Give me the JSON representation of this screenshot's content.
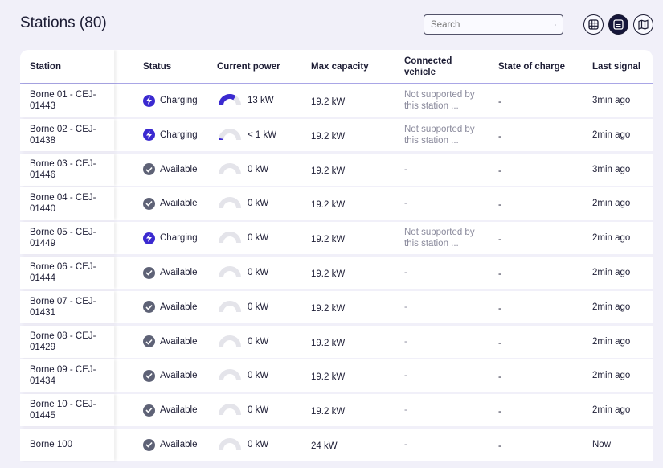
{
  "header": {
    "title": "Stations (80)",
    "search_placeholder": "Search",
    "views": [
      "grid-view",
      "list-view",
      "map-view"
    ],
    "active_view": "list-view"
  },
  "colors": {
    "accent": "#3b2ad0",
    "available": "#5e6276",
    "gauge_track": "#e4e4ea"
  },
  "table": {
    "columns": [
      "Station",
      "Status",
      "Current power",
      "Max capacity",
      "Connected vehicle",
      "State of charge",
      "Last signal"
    ],
    "rows": [
      {
        "station": "Borne 01 - CEJ-01443",
        "status": "Charging",
        "power": "13 kW",
        "power_fraction": 0.68,
        "max": "19.2 kW",
        "vehicle": "Not supported by this station ...",
        "soc": "-",
        "last": "3min ago"
      },
      {
        "station": "Borne 02 - CEJ-01438",
        "status": "Charging",
        "power": "< 1 kW",
        "power_fraction": 0.05,
        "max": "19.2 kW",
        "vehicle": "Not supported by this station ...",
        "soc": "-",
        "last": "2min ago"
      },
      {
        "station": "Borne 03 - CEJ-01446",
        "status": "Available",
        "power": "0 kW",
        "power_fraction": 0,
        "max": "19.2 kW",
        "vehicle": "-",
        "soc": "-",
        "last": "3min ago"
      },
      {
        "station": "Borne 04 - CEJ-01440",
        "status": "Available",
        "power": "0 kW",
        "power_fraction": 0,
        "max": "19.2 kW",
        "vehicle": "-",
        "soc": "-",
        "last": "2min ago"
      },
      {
        "station": "Borne 05 - CEJ-01449",
        "status": "Charging",
        "power": "0 kW",
        "power_fraction": 0,
        "max": "19.2 kW",
        "vehicle": "Not supported by this station ...",
        "soc": "-",
        "last": "2min ago"
      },
      {
        "station": "Borne 06 - CEJ-01444",
        "status": "Available",
        "power": "0 kW",
        "power_fraction": 0,
        "max": "19.2 kW",
        "vehicle": "-",
        "soc": "-",
        "last": "2min ago"
      },
      {
        "station": "Borne 07 - CEJ-01431",
        "status": "Available",
        "power": "0 kW",
        "power_fraction": 0,
        "max": "19.2 kW",
        "vehicle": "-",
        "soc": "-",
        "last": "2min ago"
      },
      {
        "station": "Borne 08 - CEJ-01429",
        "status": "Available",
        "power": "0 kW",
        "power_fraction": 0,
        "max": "19.2 kW",
        "vehicle": "-",
        "soc": "-",
        "last": "2min ago"
      },
      {
        "station": "Borne 09 - CEJ-01434",
        "status": "Available",
        "power": "0 kW",
        "power_fraction": 0,
        "max": "19.2 kW",
        "vehicle": "-",
        "soc": "-",
        "last": "2min ago"
      },
      {
        "station": "Borne 10 - CEJ-01445",
        "status": "Available",
        "power": "0 kW",
        "power_fraction": 0,
        "max": "19.2 kW",
        "vehicle": "-",
        "soc": "-",
        "last": "2min ago"
      },
      {
        "station": "Borne 100",
        "status": "Available",
        "power": "0 kW",
        "power_fraction": 0,
        "max": "24 kW",
        "vehicle": "-",
        "soc": "-",
        "last": "Now"
      }
    ]
  }
}
